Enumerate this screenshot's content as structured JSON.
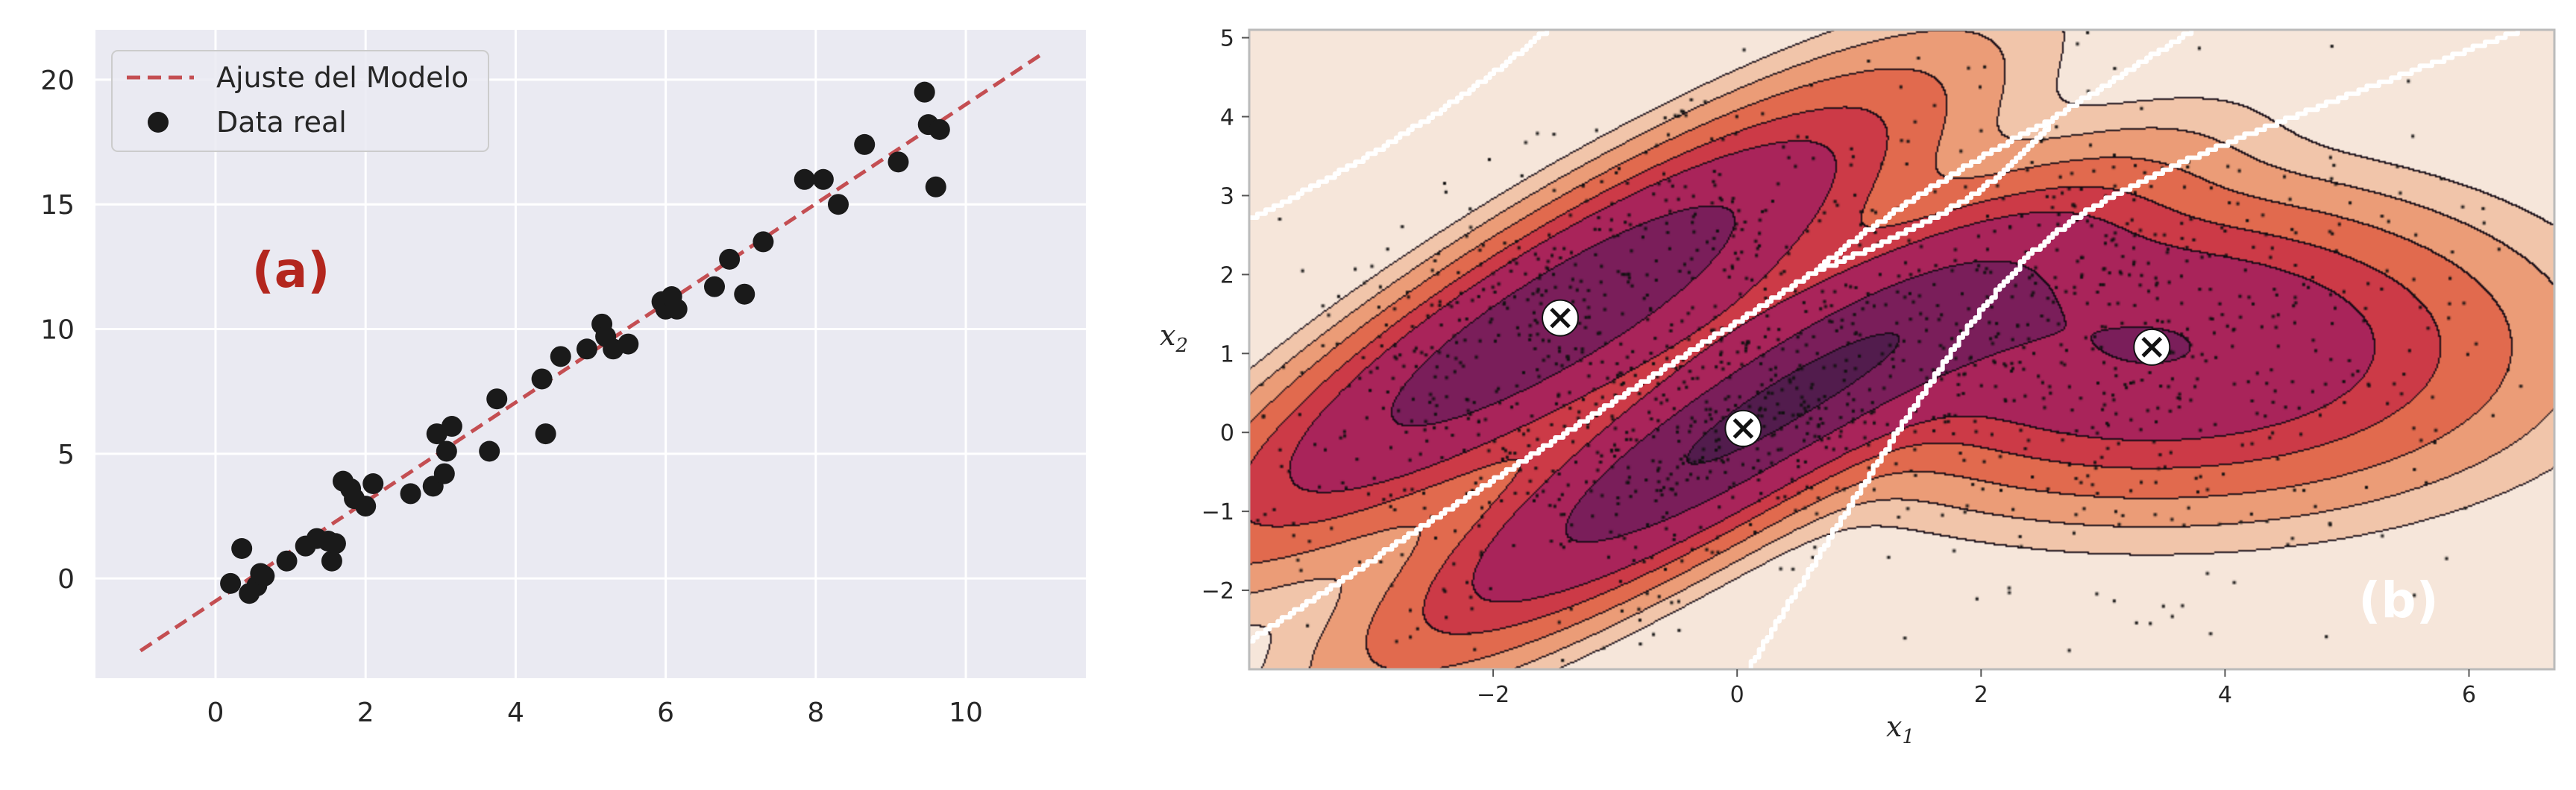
{
  "chart_data": [
    {
      "type": "scatter",
      "panel_label": "(a)",
      "panel_label_color": "#b3261e",
      "xlim": [
        -1.6,
        11.6
      ],
      "ylim": [
        -4,
        22
      ],
      "xticks": [
        0,
        2,
        4,
        6,
        8,
        10
      ],
      "yticks": [
        0,
        5,
        10,
        15,
        20
      ],
      "grid": true,
      "background": "#eaeaf2",
      "legend_placement": "upper-left",
      "series": [
        {
          "name": "Ajuste del Modelo",
          "kind": "line",
          "style": "dashed",
          "color": "#c44e52",
          "x": [
            -1,
            11
          ],
          "y": [
            -2.9,
            21.0
          ]
        },
        {
          "name": "Data real",
          "kind": "scatter",
          "color": "#1a1a1a",
          "points": [
            [
              0.2,
              -0.2
            ],
            [
              0.35,
              1.2
            ],
            [
              0.45,
              -0.6
            ],
            [
              0.55,
              -0.3
            ],
            [
              0.6,
              0.2
            ],
            [
              0.65,
              0.1
            ],
            [
              0.95,
              0.7
            ],
            [
              1.2,
              1.3
            ],
            [
              1.35,
              1.6
            ],
            [
              1.5,
              1.5
            ],
            [
              1.55,
              0.7
            ],
            [
              1.6,
              1.4
            ],
            [
              1.7,
              3.9
            ],
            [
              1.8,
              3.6
            ],
            [
              1.85,
              3.2
            ],
            [
              2.0,
              2.9
            ],
            [
              2.1,
              3.8
            ],
            [
              2.6,
              3.4
            ],
            [
              2.9,
              3.7
            ],
            [
              2.95,
              5.8
            ],
            [
              3.05,
              4.2
            ],
            [
              3.08,
              5.1
            ],
            [
              3.15,
              6.1
            ],
            [
              3.65,
              5.1
            ],
            [
              3.75,
              7.2
            ],
            [
              4.35,
              8.0
            ],
            [
              4.4,
              5.8
            ],
            [
              4.6,
              8.9
            ],
            [
              4.95,
              9.2
            ],
            [
              5.15,
              10.2
            ],
            [
              5.2,
              9.7
            ],
            [
              5.3,
              9.2
            ],
            [
              5.5,
              9.4
            ],
            [
              5.95,
              11.1
            ],
            [
              6.0,
              10.8
            ],
            [
              6.08,
              11.3
            ],
            [
              6.15,
              10.8
            ],
            [
              6.65,
              11.7
            ],
            [
              6.85,
              12.8
            ],
            [
              7.05,
              11.4
            ],
            [
              7.3,
              13.5
            ],
            [
              7.85,
              16.0
            ],
            [
              8.1,
              16.0
            ],
            [
              8.3,
              15.0
            ],
            [
              8.65,
              17.4
            ],
            [
              9.1,
              16.7
            ],
            [
              9.45,
              19.5
            ],
            [
              9.5,
              18.2
            ],
            [
              9.6,
              15.7
            ],
            [
              9.65,
              18.0
            ]
          ]
        }
      ]
    },
    {
      "type": "contour",
      "panel_label": "(b)",
      "panel_label_color": "#ffffff",
      "xlabel_var": "x",
      "xlabel_sub": "1",
      "ylabel_var": "x",
      "ylabel_sub": "2",
      "xlim": [
        -4.0,
        6.7
      ],
      "ylim": [
        -3.0,
        5.1
      ],
      "xticks": [
        -2,
        0,
        2,
        4,
        6
      ],
      "xtick_labels": [
        "−2",
        "0",
        "2",
        "4",
        "6"
      ],
      "yticks": [
        -2,
        -1,
        0,
        1,
        2,
        3,
        4,
        5
      ],
      "ytick_labels": [
        "−2",
        "−1",
        "0",
        "1",
        "2",
        "3",
        "4",
        "5"
      ],
      "levels": [
        0.25,
        0.55,
        1.1,
        2.0,
        3.1,
        5.8,
        9.0,
        13.5
      ],
      "palette": [
        "#f6e6da",
        "#f1c5aa",
        "#eb9c77",
        "#e16a4e",
        "#cc3a47",
        "#a9245a",
        "#7a1e5a",
        "#521c4d",
        "#34173a"
      ],
      "components": [
        {
          "mean": [
            -1.45,
            1.45
          ],
          "var_major": 4.5,
          "var_minor": 0.3,
          "angle_deg": 45,
          "weight": 1.0
        },
        {
          "mean": [
            0.05,
            0.05
          ],
          "var_major": 4.2,
          "var_minor": 0.25,
          "angle_deg": 45,
          "weight": 0.95
        },
        {
          "mean": [
            3.4,
            1.08
          ],
          "var_major": 2.6,
          "var_minor": 1.1,
          "angle_deg": 0,
          "weight": 1.0
        }
      ],
      "means_marked": [
        [
          -1.45,
          1.45
        ],
        [
          0.05,
          0.05
        ],
        [
          3.4,
          1.08
        ]
      ],
      "sample_count": 1500,
      "boundary_color": "#ffffff",
      "boundary_style": "dashed"
    }
  ]
}
